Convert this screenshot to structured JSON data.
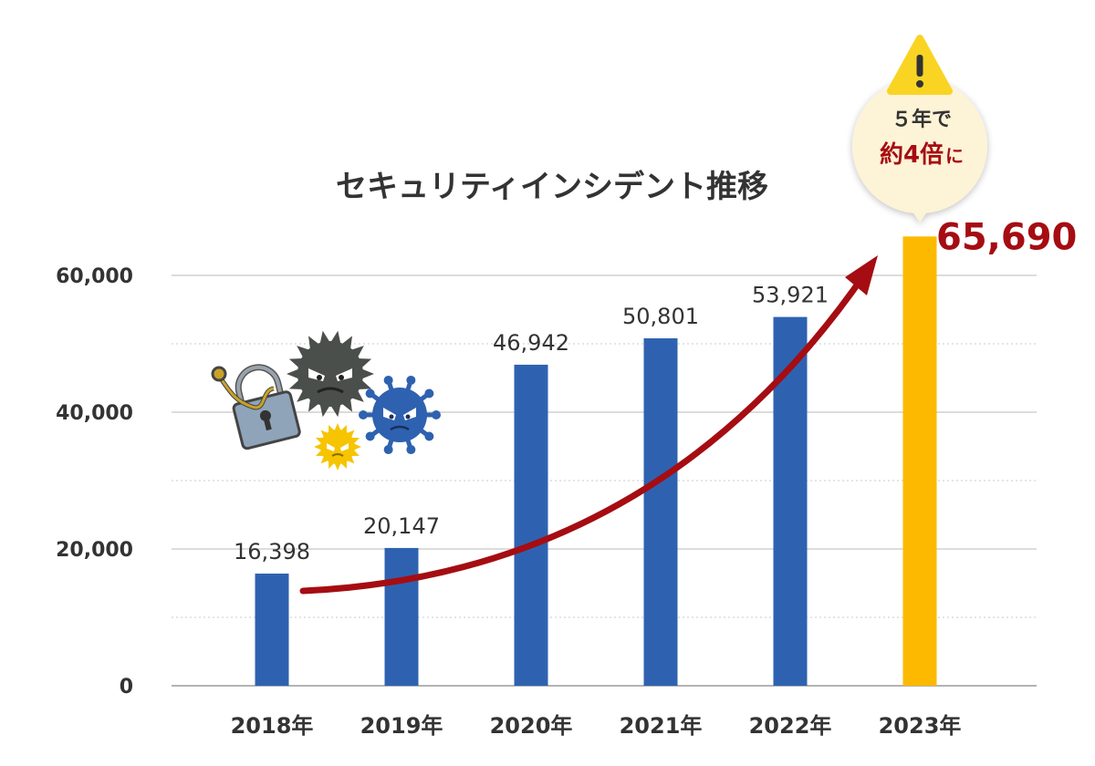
{
  "chart_data": {
    "type": "bar",
    "title": "セキュリティインシデント推移",
    "categories": [
      "2018年",
      "2019年",
      "2020年",
      "2021年",
      "2022年",
      "2023年"
    ],
    "values": [
      16398,
      20147,
      46942,
      50801,
      53921,
      65690
    ],
    "data_labels": [
      "16,398",
      "20,147",
      "46,942",
      "50,801",
      "53,921",
      "65,690"
    ],
    "ylim": [
      0,
      70000
    ],
    "y_ticks": [
      {
        "value": 0,
        "label": "0"
      },
      {
        "value": 20000,
        "label": "20,000"
      },
      {
        "value": 40000,
        "label": "40,000"
      },
      {
        "value": 60000,
        "label": "60,000"
      }
    ],
    "minor_grid": [
      10000,
      30000,
      50000
    ],
    "grid": true,
    "xlabel": "",
    "ylabel": "",
    "highlight_index": 5,
    "colors": {
      "bar": "#2e62b0",
      "highlight_bar": "#fcb900",
      "highlight_label": "#a50d12",
      "trend_arrow": "#a50d12",
      "grid": "#c8c8c8"
    },
    "callout": {
      "line1": "５年で",
      "line2_strong": "約4倍",
      "line2_suffix": "に",
      "icon": "warning-icon",
      "bubble_color": "#fdf3d6",
      "icon_color": "#f9d423"
    },
    "illustration_icons": [
      "padlock-hacked-icon",
      "dark-virus-icon",
      "blue-virus-icon",
      "yellow-virus-icon"
    ]
  }
}
